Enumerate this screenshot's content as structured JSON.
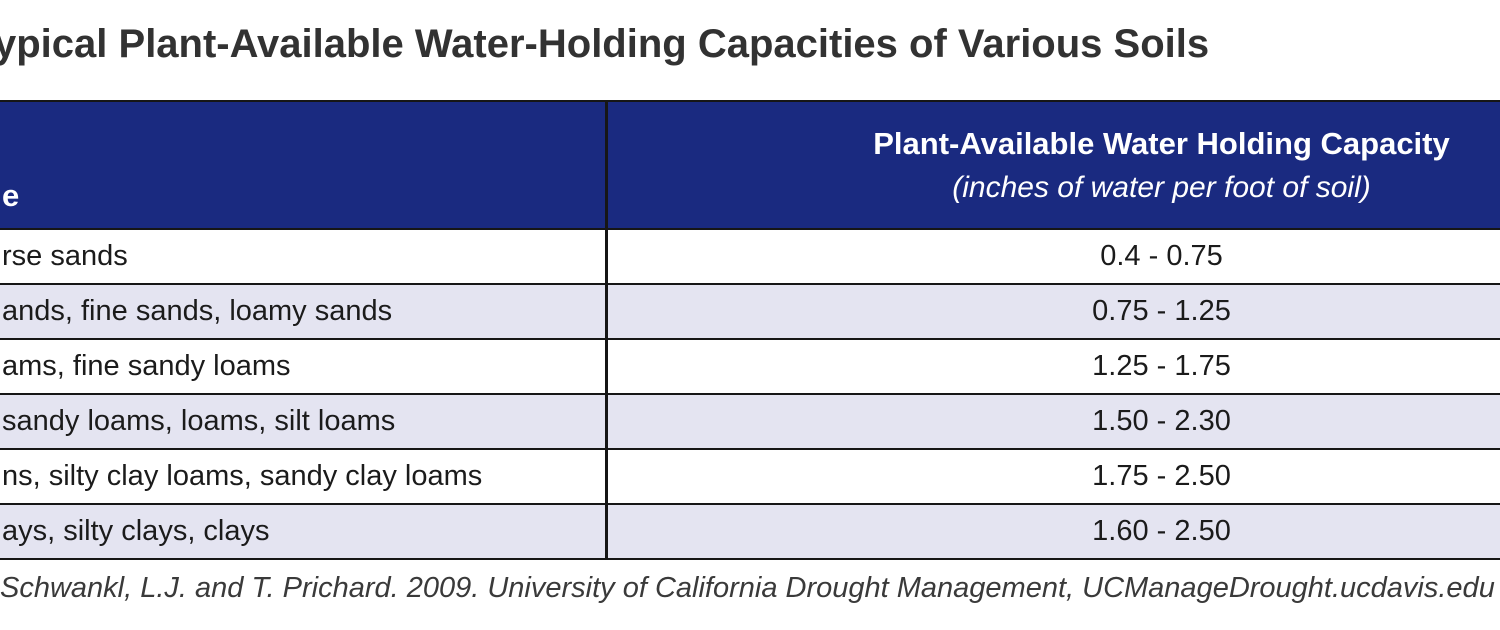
{
  "title": "ypical Plant-Available Water-Holding Capacities of Various Soils",
  "table": {
    "col1_header": "e",
    "col2_header": "Plant-Available Water Holding Capacity",
    "col2_subheader": "(inches of water per foot of soil)",
    "rows": [
      {
        "soil": "rse sands",
        "capacity": "0.4 - 0.75"
      },
      {
        "soil": "ands, fine sands, loamy sands",
        "capacity": "0.75 - 1.25"
      },
      {
        "soil": "ams, fine sandy loams",
        "capacity": "1.25 - 1.75"
      },
      {
        "soil": "sandy loams, loams, silt loams",
        "capacity": "1.50 - 2.30"
      },
      {
        "soil": "ns, silty clay loams, sandy clay loams",
        "capacity": "1.75 - 2.50"
      },
      {
        "soil": "ays, silty clays, clays",
        "capacity": "1.60 - 2.50"
      }
    ]
  },
  "footer": "Schwankl, L.J. and T. Prichard. 2009. University of California Drought Management, UCManageDrought.ucdavis.edu",
  "colors": {
    "header_bg": "#1a2a80",
    "row_alt_bg": "#e4e4f1",
    "border": "#161616",
    "title_text": "#323232",
    "body_text": "#1b1b1b",
    "footer_text": "#3a3a3a"
  },
  "chart_data": {
    "type": "table",
    "title": "ypical Plant-Available Water-Holding Capacities of Various Soils",
    "columns": [
      "e",
      "Plant-Available Water Holding Capacity (inches of water per foot of soil)"
    ],
    "rows": [
      [
        "rse sands",
        "0.4 - 0.75"
      ],
      [
        "ands, fine sands, loamy sands",
        "0.75 - 1.25"
      ],
      [
        "ams, fine sandy loams",
        "1.25 - 1.75"
      ],
      [
        "sandy loams, loams, silt loams",
        "1.50 - 2.30"
      ],
      [
        "ns, silty clay loams, sandy clay loams",
        "1.75 - 2.50"
      ],
      [
        "ays, silty clays, clays",
        "1.60 - 2.50"
      ]
    ],
    "capacity_ranges_in_per_ft": [
      [
        0.4,
        0.75
      ],
      [
        0.75,
        1.25
      ],
      [
        1.25,
        1.75
      ],
      [
        1.5,
        2.3
      ],
      [
        1.75,
        2.5
      ],
      [
        1.6,
        2.5
      ]
    ],
    "source": "Schwankl, L.J. and T. Prichard. 2009. University of California Drought Management, UCManageDrought.ucdavis.edu",
    "layout_hints": {
      "header_style": "dark-blue band, white bold text",
      "row_striping": "white / light lavender alternating",
      "cropped": "table is clipped on both left and right edges of the image"
    }
  }
}
